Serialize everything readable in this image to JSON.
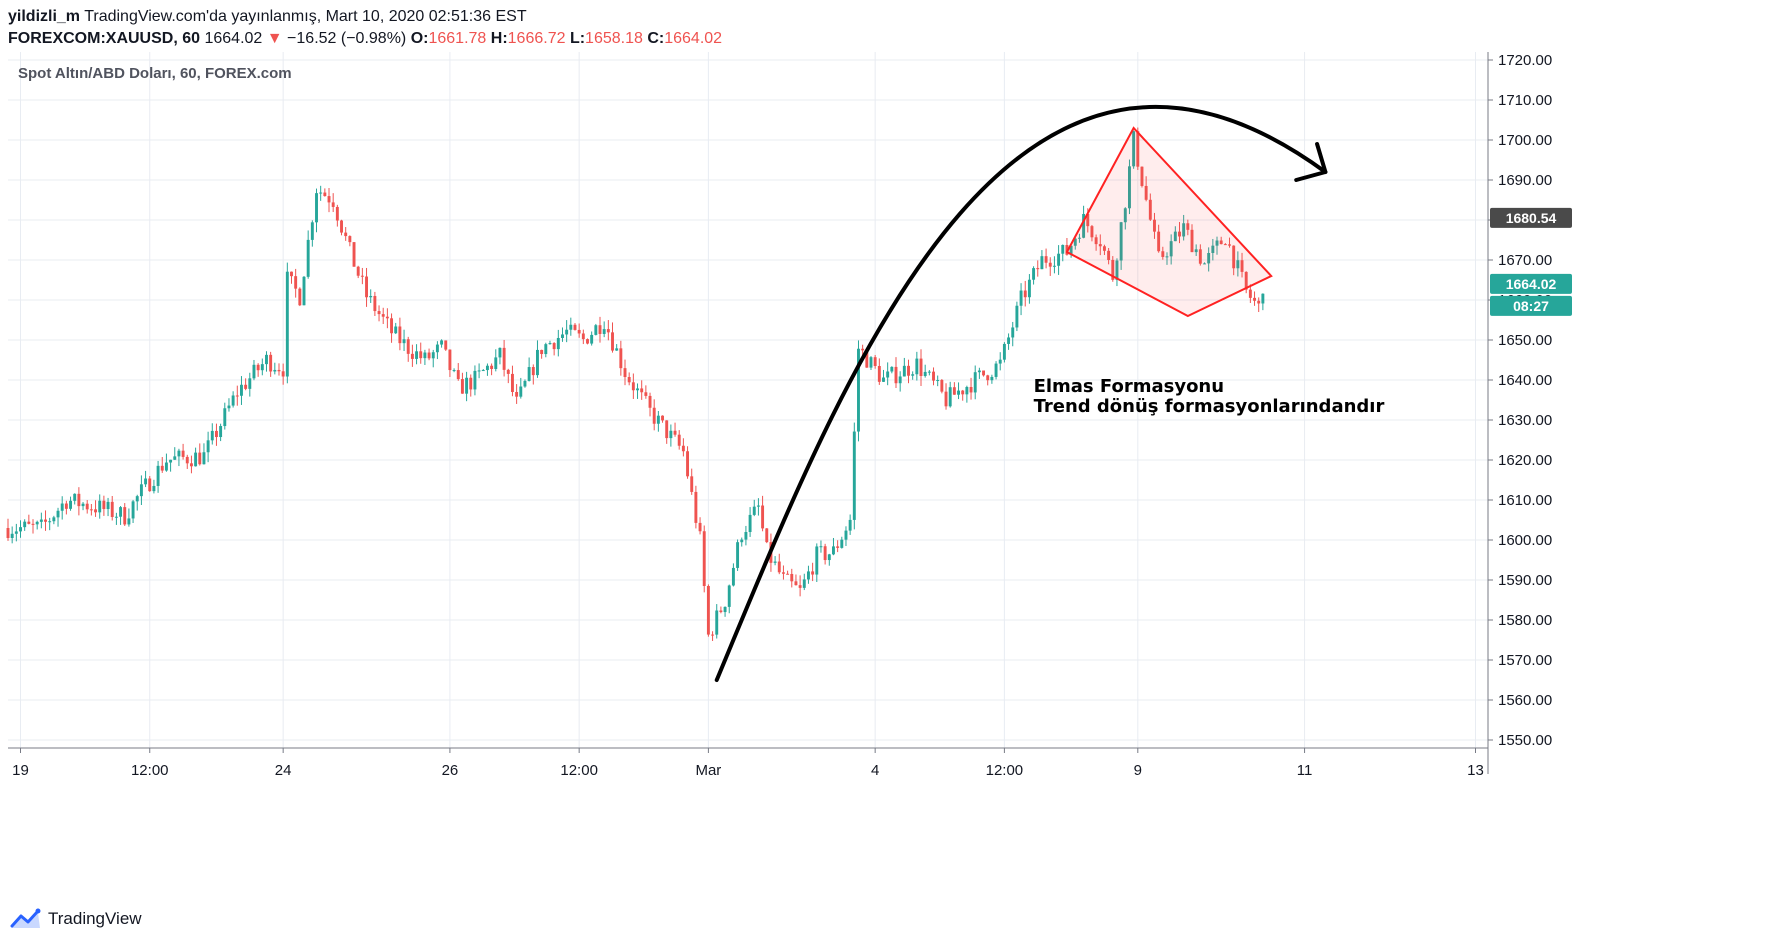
{
  "header": {
    "user": "yildizli_m",
    "published": " TradingView.com'da yayınlanmış, Mart 10, 2020 02:51:36 EST",
    "symbol": "FOREXCOM:XAUUSD, 60",
    "last": " 1664.02 ",
    "down_arrow": "▼",
    "change": " −16.52 (−0.98%) ",
    "o_label": "O:",
    "o_value": "1661.78",
    "h_label": " H:",
    "h_value": "1666.72",
    "l_label": " L:",
    "l_value": "1658.18",
    "c_label": " C:",
    "c_value": "1664.02"
  },
  "footer": {
    "brand": "TradingView"
  },
  "colors": {
    "up": "#26a69a",
    "down": "#ef5350",
    "grid": "#e8ecf2",
    "pattern": "#ff2222",
    "arrow": "#000000",
    "badge_gray": "#4a4a4a"
  },
  "chart_data": {
    "type": "candlestick",
    "title": "Spot Altın/ABD Doları, 60, FOREX.com",
    "ylim": [
      1548,
      1722
    ],
    "y_ticks": [
      1550,
      1560,
      1570,
      1580,
      1590,
      1600,
      1610,
      1620,
      1630,
      1640,
      1650,
      1660,
      1670,
      1680,
      1690,
      1700,
      1710,
      1720
    ],
    "y_tick_labels": [
      "1550.00",
      "1560.00",
      "1570.00",
      "1580.00",
      "1590.00",
      "1600.00",
      "1610.00",
      "1620.00",
      "1630.00",
      "1640.00",
      "1650.00",
      "1660.00",
      "1670.00",
      "1680.00",
      "1690.00",
      "1700.00",
      "1710.00",
      "1720.00"
    ],
    "x_labels": [
      "19",
      "12:00",
      "24",
      "26",
      "12:00",
      "Mar",
      "4",
      "12:00",
      "9",
      "11",
      "13"
    ],
    "x_domain": [
      0,
      355
    ],
    "x_tick_positions": [
      3,
      34,
      66,
      106,
      137,
      168,
      208,
      239,
      271,
      311,
      352
    ],
    "series": [
      {
        "name": "XAUUSD",
        "anchors": [
          [
            0,
            1603
          ],
          [
            8,
            1603
          ],
          [
            14,
            1610
          ],
          [
            22,
            1608
          ],
          [
            28,
            1606
          ],
          [
            32,
            1612
          ],
          [
            38,
            1620
          ],
          [
            47,
            1621
          ],
          [
            55,
            1637
          ],
          [
            62,
            1645
          ],
          [
            66,
            1643
          ],
          [
            67,
            1665
          ],
          [
            70,
            1661
          ],
          [
            74,
            1688
          ],
          [
            78,
            1685
          ],
          [
            82,
            1672
          ],
          [
            86,
            1661
          ],
          [
            92,
            1652
          ],
          [
            96,
            1648
          ],
          [
            100,
            1645
          ],
          [
            104,
            1648
          ],
          [
            108,
            1638
          ],
          [
            112,
            1640
          ],
          [
            118,
            1646
          ],
          [
            122,
            1634
          ],
          [
            128,
            1648
          ],
          [
            134,
            1652
          ],
          [
            138,
            1650
          ],
          [
            143,
            1655
          ],
          [
            148,
            1642
          ],
          [
            154,
            1632
          ],
          [
            158,
            1627
          ],
          [
            162,
            1622
          ],
          [
            166,
            1600
          ],
          [
            168,
            1576
          ],
          [
            172,
            1585
          ],
          [
            176,
            1602
          ],
          [
            180,
            1608
          ],
          [
            182,
            1597
          ],
          [
            186,
            1590
          ],
          [
            190,
            1587
          ],
          [
            194,
            1596
          ],
          [
            198,
            1597
          ],
          [
            202,
            1605
          ],
          [
            204,
            1648
          ],
          [
            210,
            1640
          ],
          [
            218,
            1644
          ],
          [
            225,
            1635
          ],
          [
            232,
            1640
          ],
          [
            238,
            1644
          ],
          [
            243,
            1660
          ],
          [
            248,
            1670
          ],
          [
            254,
            1672
          ],
          [
            258,
            1680
          ],
          [
            262,
            1675
          ],
          [
            265,
            1666
          ],
          [
            268,
            1685
          ],
          [
            270,
            1700
          ],
          [
            272,
            1690
          ],
          [
            276,
            1670
          ],
          [
            282,
            1678
          ],
          [
            287,
            1669
          ],
          [
            292,
            1676
          ],
          [
            297,
            1662
          ],
          [
            300,
            1658
          ],
          [
            301,
            1664
          ]
        ]
      }
    ],
    "annotations": [
      {
        "type": "label",
        "text": "Elmas Formasyonu"
      },
      {
        "type": "label",
        "text": "Trend dönüş formasyonlarındandır"
      }
    ],
    "price_badges": [
      {
        "value": "1680.54",
        "color": "#4a4a4a"
      },
      {
        "value": "1664.02",
        "color": "#26a69a"
      },
      {
        "value": "08:27",
        "color": "#26a69a"
      }
    ],
    "grid": true
  }
}
